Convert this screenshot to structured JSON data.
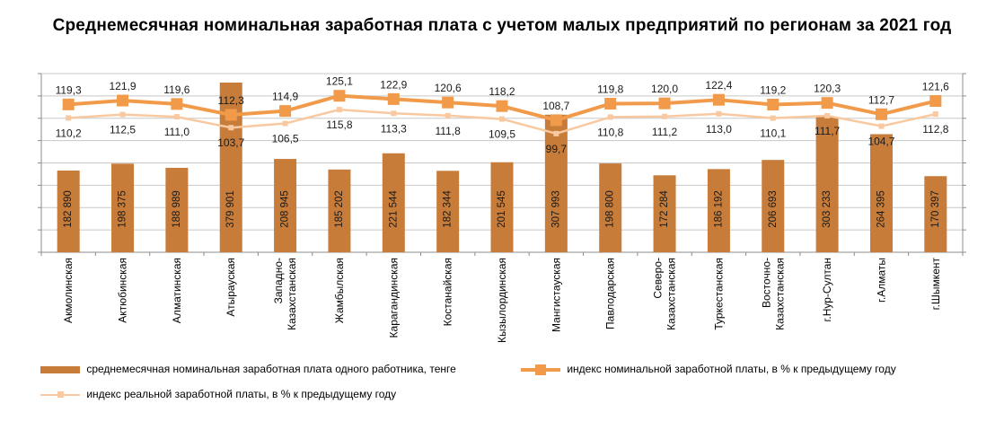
{
  "chart_data": {
    "type": "bar",
    "title": "Среднемесячная номинальная заработная плата с учетом малых предприятий по регионам за 2021 год",
    "categories": [
      "Акмолинская",
      "Актюбинская",
      "Алматинская",
      "Атырауская",
      "Западно-Казахстанская",
      "Жамбылская",
      "Карагандинская",
      "Костанайская",
      "Кызылординская",
      "Мангистауская",
      "Павлодарская",
      "Северо-Казахстанская",
      "Туркестанская",
      "Восточно-Казахстанская",
      "г.Нур-Султан",
      "г.Алматы",
      "г.Шымкент"
    ],
    "category_label_lines": [
      [
        "Акмолинская"
      ],
      [
        "Актюбинская"
      ],
      [
        "Алматинская"
      ],
      [
        "Атырауская"
      ],
      [
        "Западно-",
        "Казахстанская"
      ],
      [
        "Жамбылская"
      ],
      [
        "Карагандинская"
      ],
      [
        "Костанайская"
      ],
      [
        "Кызылординская"
      ],
      [
        "Мангистауская"
      ],
      [
        "Павлодарская"
      ],
      [
        "Северо-",
        "Казахстанская"
      ],
      [
        "Туркестанская"
      ],
      [
        "Восточно-",
        "Казахстанская"
      ],
      [
        "г.Нур-Султан"
      ],
      [
        "г.Алматы"
      ],
      [
        "г.Шымкент"
      ]
    ],
    "series": [
      {
        "name": "среднемесячная номинальная заработная плата одного работника, тенге",
        "kind": "bar",
        "axis": "left",
        "color": "#C77C3A",
        "values": [
          182890,
          198375,
          188989,
          379901,
          208945,
          185202,
          221544,
          182344,
          201545,
          307993,
          198800,
          172284,
          186192,
          206693,
          303233,
          264395,
          170397
        ],
        "labels": [
          "182 890",
          "198 375",
          "188 989",
          "379 901",
          "208 945",
          "185 202",
          "221 544",
          "182 344",
          "201 545",
          "307 993",
          "198 800",
          "172 284",
          "186 192",
          "206 693",
          "303 233",
          "264 395",
          "170 397"
        ]
      },
      {
        "name": "индекс номинальной заработной платы, в % к предыдущему году",
        "kind": "line",
        "axis": "right",
        "color": "#F09A4A",
        "values": [
          119.3,
          121.9,
          119.6,
          112.3,
          114.9,
          125.1,
          122.9,
          120.6,
          118.2,
          108.7,
          119.8,
          120.0,
          122.4,
          119.2,
          120.3,
          112.7,
          121.6
        ],
        "labels": [
          "119,3",
          "121,9",
          "119,6",
          "112,3",
          "114,9",
          "125,1",
          "122,9",
          "120,6",
          "118,2",
          "108,7",
          "119,8",
          "120,0",
          "122,4",
          "119,2",
          "120,3",
          "112,7",
          "121,6"
        ]
      },
      {
        "name": "индекс реальной заработной платы, в % к предыдущему году",
        "kind": "line",
        "axis": "right",
        "color": "#F8C9A0",
        "values": [
          110.2,
          112.5,
          111.0,
          103.7,
          106.5,
          115.8,
          113.3,
          111.8,
          109.5,
          99.7,
          110.8,
          111.2,
          113.0,
          110.1,
          111.7,
          104.7,
          112.8
        ],
        "labels": [
          "110,2",
          "112,5",
          "111,0",
          "103,7",
          "106,5",
          "115,8",
          "113,3",
          "111,8",
          "109,5",
          "99,7",
          "110,8",
          "111,2",
          "113,0",
          "110,1",
          "111,7",
          "104,7",
          "112,8"
        ]
      }
    ],
    "left_axis": {
      "ylim": [
        0,
        400000
      ],
      "tick_labels_visible": false
    },
    "right_axis": {
      "ylim": [
        20,
        140
      ],
      "tick_labels_visible": false
    },
    "grid": true,
    "legend_position": "bottom"
  }
}
